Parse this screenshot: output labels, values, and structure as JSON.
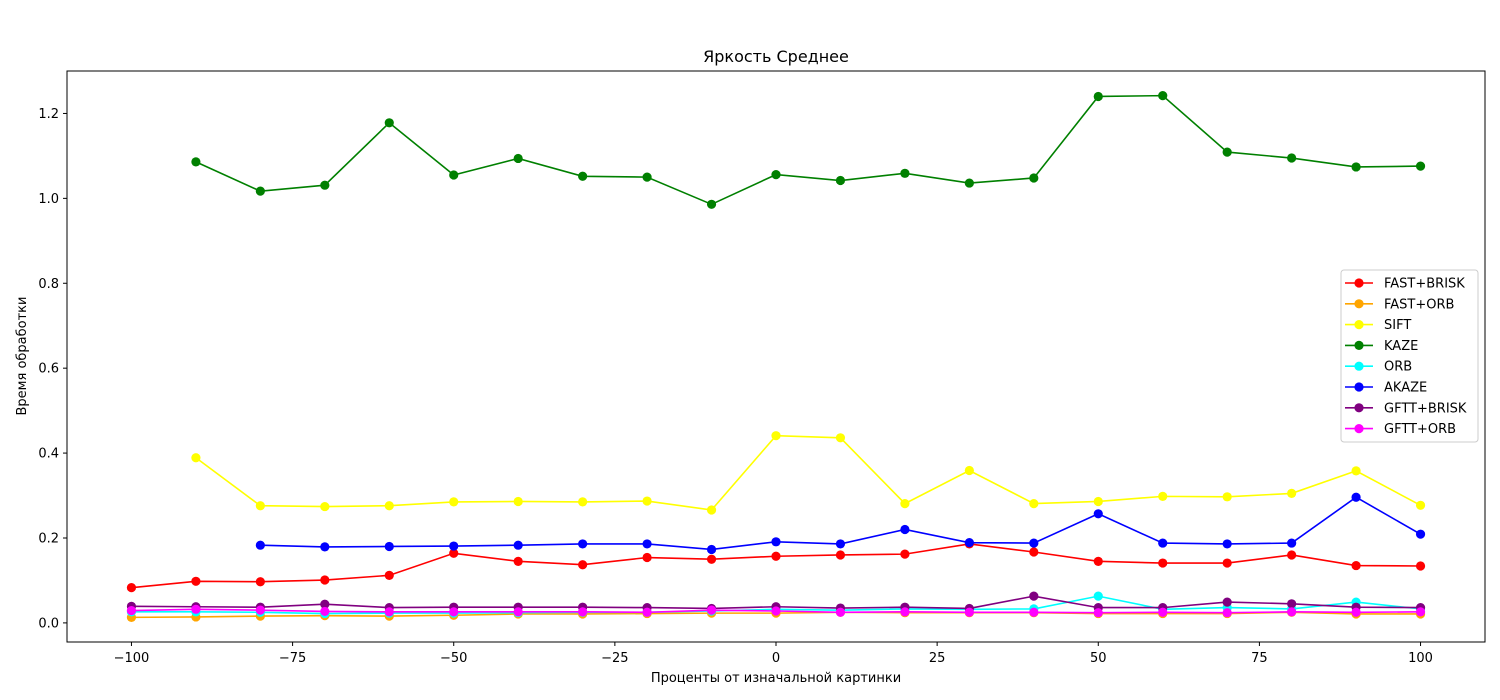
{
  "chart_data": {
    "type": "line",
    "title": "Яркость Среднее",
    "xlabel": "Проценты от изначальной картинки",
    "ylabel": "Время обработки",
    "xlim": [
      -110,
      110
    ],
    "ylim": [
      -0.045,
      1.3
    ],
    "xticks": [
      -100,
      -75,
      -50,
      -25,
      0,
      25,
      50,
      75,
      100
    ],
    "xtick_labels": [
      "−100",
      "−75",
      "−50",
      "−25",
      "0",
      "25",
      "50",
      "75",
      "100"
    ],
    "yticks": [
      0.0,
      0.2,
      0.4,
      0.6,
      0.8,
      1.0,
      1.2
    ],
    "ytick_labels": [
      "0.0",
      "0.2",
      "0.4",
      "0.6",
      "0.8",
      "1.0",
      "1.2"
    ],
    "grid": false,
    "legend_position": "right",
    "x": [
      -100,
      -90,
      -80,
      -70,
      -60,
      -50,
      -40,
      -30,
      -20,
      -10,
      0,
      10,
      20,
      30,
      40,
      50,
      60,
      70,
      80,
      90,
      100
    ],
    "series": [
      {
        "name": "FAST+BRISK",
        "color": "#ff0000",
        "values": [
          0.083,
          0.098,
          0.097,
          0.101,
          0.112,
          0.164,
          0.145,
          0.137,
          0.154,
          0.15,
          0.157,
          0.16,
          0.162,
          0.186,
          0.167,
          0.145,
          0.141,
          0.141,
          0.16,
          0.135,
          0.134
        ]
      },
      {
        "name": "FAST+ORB",
        "color": "#ffa500",
        "values": [
          0.013,
          0.014,
          0.016,
          0.017,
          0.016,
          0.018,
          0.021,
          0.021,
          0.022,
          0.023,
          0.023,
          0.025,
          0.024,
          0.024,
          0.024,
          0.022,
          0.022,
          0.022,
          0.025,
          0.021,
          0.021
        ]
      },
      {
        "name": "SIFT",
        "color": "#ffff00",
        "values": [
          null,
          0.389,
          0.276,
          0.274,
          0.276,
          0.285,
          0.286,
          0.285,
          0.287,
          0.266,
          0.441,
          0.436,
          0.281,
          0.359,
          0.281,
          0.286,
          0.298,
          0.297,
          0.305,
          0.358,
          0.277
        ]
      },
      {
        "name": "KAZE",
        "color": "#008000",
        "values": [
          null,
          1.086,
          1.017,
          1.031,
          1.178,
          1.055,
          1.094,
          1.052,
          1.05,
          0.986,
          1.056,
          1.042,
          1.059,
          1.036,
          1.048,
          1.24,
          1.242,
          1.109,
          1.095,
          1.074,
          1.076
        ]
      },
      {
        "name": "ORB",
        "color": "#00ffff",
        "values": [
          0.026,
          0.026,
          0.025,
          0.022,
          0.023,
          0.023,
          0.024,
          0.025,
          0.025,
          0.028,
          0.032,
          0.03,
          0.033,
          0.032,
          0.033,
          0.063,
          0.032,
          0.036,
          0.033,
          0.049,
          0.033
        ]
      },
      {
        "name": "AKAZE",
        "color": "#0000ff",
        "values": [
          null,
          null,
          0.183,
          0.179,
          0.18,
          0.181,
          0.183,
          0.186,
          0.186,
          0.173,
          0.191,
          0.186,
          0.22,
          0.189,
          0.188,
          0.257,
          0.188,
          0.186,
          0.188,
          0.296,
          0.209
        ]
      },
      {
        "name": "GFTT+BRISK",
        "color": "#800080",
        "values": [
          0.039,
          0.038,
          0.037,
          0.044,
          0.036,
          0.037,
          0.037,
          0.037,
          0.036,
          0.034,
          0.038,
          0.035,
          0.037,
          0.034,
          0.063,
          0.036,
          0.036,
          0.049,
          0.045,
          0.037,
          0.036
        ]
      },
      {
        "name": "GFTT+ORB",
        "color": "#ff00ff",
        "values": [
          0.029,
          0.032,
          0.03,
          0.027,
          0.026,
          0.026,
          0.026,
          0.026,
          0.025,
          0.03,
          0.028,
          0.025,
          0.026,
          0.025,
          0.025,
          0.024,
          0.025,
          0.024,
          0.026,
          0.025,
          0.026
        ]
      }
    ]
  }
}
